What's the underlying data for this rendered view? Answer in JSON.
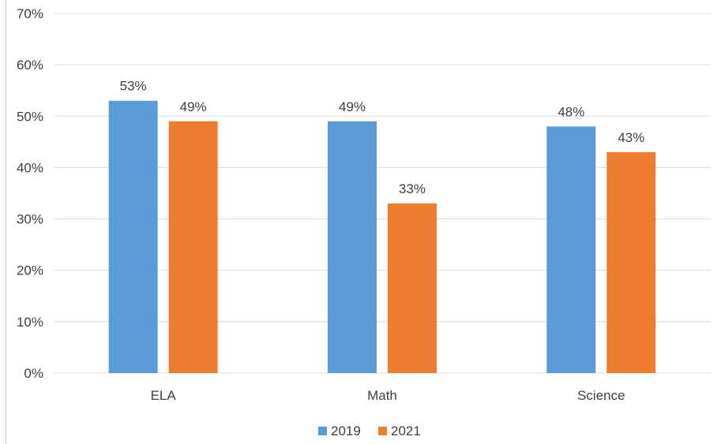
{
  "chart_data": {
    "type": "bar",
    "categories": [
      "ELA",
      "Math",
      "Science"
    ],
    "series": [
      {
        "name": "2019",
        "values": [
          53,
          49,
          48
        ],
        "color": "#5B9BD5",
        "labels": [
          "53%",
          "49%",
          "48%"
        ]
      },
      {
        "name": "2021",
        "values": [
          49,
          33,
          43
        ],
        "color": "#ED7D31",
        "labels": [
          "49%",
          "33%",
          "43%"
        ]
      }
    ],
    "ylim": [
      0,
      70
    ],
    "yticks": [
      0,
      10,
      20,
      30,
      40,
      50,
      60,
      70
    ],
    "ytick_labels": [
      "0%",
      "10%",
      "20%",
      "30%",
      "40%",
      "50%",
      "60%",
      "70%"
    ],
    "grid": true,
    "legend_position": "bottom"
  }
}
